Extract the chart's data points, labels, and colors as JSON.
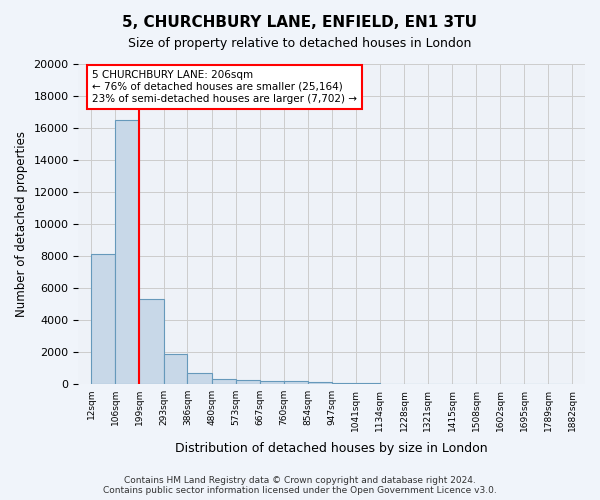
{
  "title1": "5, CHURCHBURY LANE, ENFIELD, EN1 3TU",
  "title2": "Size of property relative to detached houses in London",
  "xlabel": "Distribution of detached houses by size in London",
  "ylabel": "Number of detached properties",
  "bin_edges": [
    12,
    106,
    199,
    293,
    386,
    480,
    573,
    667,
    760,
    854,
    947,
    1041,
    1134,
    1228,
    1321,
    1415,
    1508,
    1602,
    1695,
    1789,
    1882
  ],
  "bin_edge_labels": [
    "12sqm",
    "106sqm",
    "199sqm",
    "293sqm",
    "386sqm",
    "480sqm",
    "573sqm",
    "667sqm",
    "760sqm",
    "854sqm",
    "947sqm",
    "1041sqm",
    "1134sqm",
    "1228sqm",
    "1321sqm",
    "1415sqm",
    "1508sqm",
    "1602sqm",
    "1695sqm",
    "1789sqm",
    "1882sqm"
  ],
  "bar_heights": [
    8100,
    16500,
    5300,
    1850,
    700,
    300,
    220,
    180,
    160,
    100,
    50,
    30,
    20,
    15,
    10,
    5,
    5,
    5,
    5,
    5
  ],
  "bar_color": "#c8d8e8",
  "bar_edge_color": "#6699bb",
  "grid_color": "#cccccc",
  "bg_color": "#eef2f8",
  "fig_color": "#f0f4fa",
  "red_line_x": 199,
  "annotation_text": "5 CHURCHBURY LANE: 206sqm\n← 76% of detached houses are smaller (25,164)\n23% of semi-detached houses are larger (7,702) →",
  "ylim": [
    0,
    20000
  ],
  "yticks": [
    0,
    2000,
    4000,
    6000,
    8000,
    10000,
    12000,
    14000,
    16000,
    18000,
    20000
  ],
  "footer_line1": "Contains HM Land Registry data © Crown copyright and database right 2024.",
  "footer_line2": "Contains public sector information licensed under the Open Government Licence v3.0."
}
